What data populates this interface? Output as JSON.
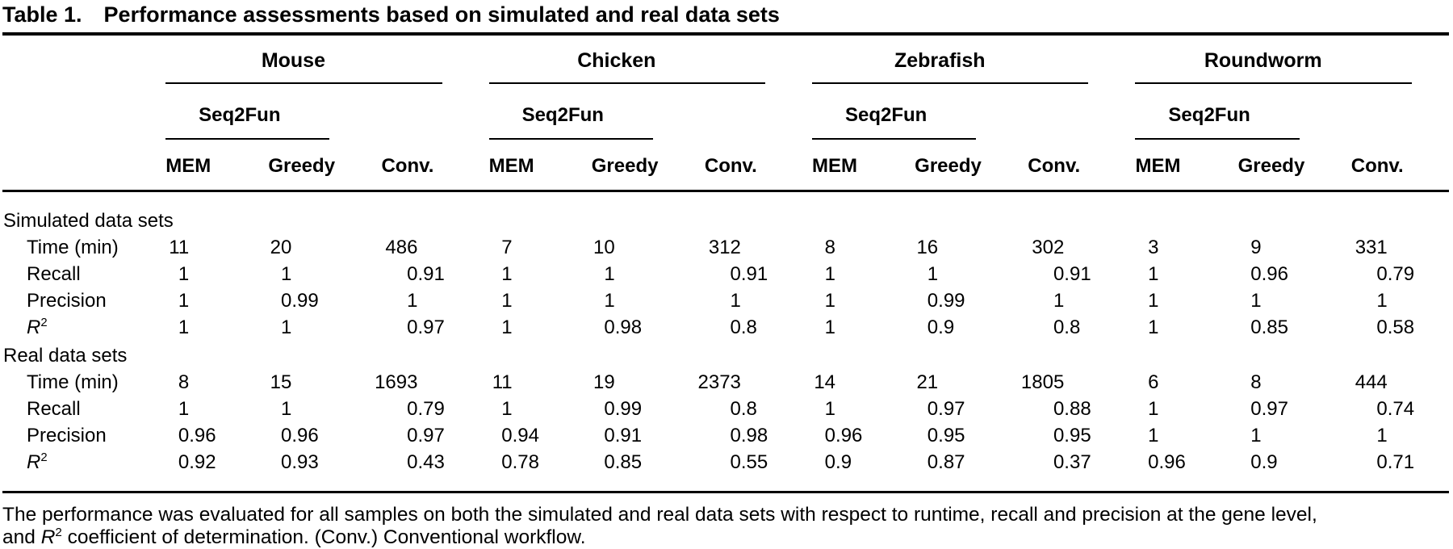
{
  "title": {
    "label": "Table 1.",
    "text": "Performance assessments based on simulated and real data sets"
  },
  "table": {
    "groups": [
      {
        "name": "Mouse",
        "subgroup": "Seq2Fun",
        "columns": [
          "MEM",
          "Greedy",
          "Conv."
        ]
      },
      {
        "name": "Chicken",
        "subgroup": "Seq2Fun",
        "columns": [
          "MEM",
          "Greedy",
          "Conv."
        ]
      },
      {
        "name": "Zebrafish",
        "subgroup": "Seq2Fun",
        "columns": [
          "MEM",
          "Greedy",
          "Conv."
        ]
      },
      {
        "name": "Roundworm",
        "subgroup": "Seq2Fun",
        "columns": [
          "MEM",
          "Greedy",
          "Conv."
        ]
      }
    ],
    "sections": [
      {
        "label": "Simulated data sets",
        "rows": [
          {
            "label": "Time (min)",
            "values": [
              11,
              20,
              486,
              7,
              10,
              312,
              8,
              16,
              302,
              3,
              9,
              331
            ]
          },
          {
            "label": "Recall",
            "values": [
              1,
              1,
              0.91,
              1,
              1,
              0.91,
              1,
              1,
              0.91,
              1,
              0.96,
              0.79
            ]
          },
          {
            "label": "Precision",
            "values": [
              1,
              0.99,
              1,
              1,
              1,
              1,
              1,
              0.99,
              1,
              1,
              1,
              1
            ]
          },
          {
            "label": "R",
            "sup": "2",
            "values": [
              1,
              1,
              0.97,
              1,
              0.98,
              0.8,
              1,
              0.9,
              0.8,
              1,
              0.85,
              0.58
            ]
          }
        ]
      },
      {
        "label": "Real data sets",
        "rows": [
          {
            "label": "Time (min)",
            "values": [
              8,
              15,
              1693,
              11,
              19,
              2373,
              14,
              21,
              1805,
              6,
              8,
              444
            ]
          },
          {
            "label": "Recall",
            "values": [
              1,
              1,
              0.79,
              1,
              0.99,
              0.8,
              1,
              0.97,
              0.88,
              1,
              0.97,
              0.74
            ]
          },
          {
            "label": "Precision",
            "values": [
              0.96,
              0.96,
              0.97,
              0.94,
              0.91,
              0.98,
              0.96,
              0.95,
              0.95,
              1,
              1,
              1
            ]
          },
          {
            "label": "R",
            "sup": "2",
            "values": [
              0.92,
              0.93,
              0.43,
              0.78,
              0.85,
              0.55,
              0.9,
              0.87,
              0.37,
              0.96,
              0.9,
              0.71
            ]
          }
        ]
      }
    ]
  },
  "footnote": {
    "line1": "The performance was evaluated for all samples on both the simulated and real data sets with respect to runtime, recall and precision at the gene level,",
    "line2": {
      "prefix": "and ",
      "italic": "R",
      "sup": "2",
      "suffix": " coefficient of determination. (Conv.) Conventional workflow."
    }
  }
}
